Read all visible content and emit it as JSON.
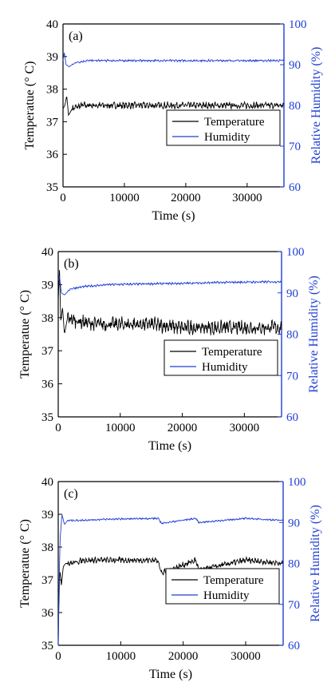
{
  "chart_data": [
    {
      "type": "line",
      "panel_label": "(a)",
      "xlabel": "Time (s)",
      "ylabel_left": "Temperatue (° C)",
      "ylabel_right": "Relative Humidity (%)",
      "xlim": [
        0,
        36000
      ],
      "ylim_left": [
        35,
        40
      ],
      "ylim_right": [
        60,
        100
      ],
      "x_ticks": [
        0,
        10000,
        20000,
        30000
      ],
      "y_ticks_left": [
        35,
        36,
        37,
        38,
        39,
        40
      ],
      "y_ticks_right": [
        60,
        70,
        80,
        90,
        100
      ],
      "legend_position": "right-middle",
      "series": [
        {
          "name": "Temperature",
          "axis": "left",
          "color": "#000000",
          "x": [
            0,
            300,
            600,
            900,
            1500,
            3000,
            6000,
            10000,
            15000,
            20000,
            25000,
            30000,
            36000
          ],
          "y": [
            37.4,
            37.5,
            37.8,
            37.2,
            37.4,
            37.5,
            37.5,
            37.5,
            37.5,
            37.5,
            37.5,
            37.5,
            37.5
          ],
          "noise": 0.12
        },
        {
          "name": "Humidity",
          "axis": "right",
          "color": "#1f3fd4",
          "x": [
            0,
            200,
            500,
            1000,
            2000,
            4000,
            8000,
            15000,
            20000,
            25000,
            30000,
            36000
          ],
          "y": [
            91,
            93,
            90,
            89.5,
            90.5,
            91,
            91,
            91,
            91,
            91,
            91,
            91
          ],
          "noise": 0.3
        }
      ]
    },
    {
      "type": "line",
      "panel_label": "(b)",
      "xlabel": "Time (s)",
      "ylabel_left": "Temperatue (° C)",
      "ylabel_right": "Relative Humidity (%)",
      "xlim": [
        0,
        36000
      ],
      "ylim_left": [
        35,
        40
      ],
      "ylim_right": [
        60,
        100
      ],
      "x_ticks": [
        0,
        10000,
        20000,
        30000
      ],
      "y_ticks_left": [
        35,
        36,
        37,
        38,
        39,
        40
      ],
      "y_ticks_right": [
        60,
        70,
        80,
        90,
        100
      ],
      "legend_position": "right-middle",
      "series": [
        {
          "name": "Temperature",
          "axis": "left",
          "color": "#000000",
          "x": [
            0,
            200,
            400,
            700,
            1000,
            1500,
            3000,
            6000,
            10000,
            15000,
            20000,
            25000,
            30000,
            36000
          ],
          "y": [
            38.5,
            39.5,
            37.9,
            38.3,
            37.5,
            38.0,
            37.9,
            37.8,
            37.8,
            37.8,
            37.7,
            37.7,
            37.7,
            37.7
          ],
          "noise": 0.25
        },
        {
          "name": "Humidity",
          "axis": "right",
          "color": "#1f3fd4",
          "x": [
            0,
            200,
            500,
            1000,
            2000,
            4000,
            8000,
            15000,
            20000,
            25000,
            30000,
            36000
          ],
          "y": [
            93,
            94,
            90,
            89.5,
            91,
            91.5,
            92,
            92.2,
            92.3,
            92.5,
            92.6,
            92.7
          ],
          "noise": 0.3
        }
      ]
    },
    {
      "type": "line",
      "panel_label": "(c)",
      "xlabel": "Time (s)",
      "ylabel_left": "Temperatue (° C)",
      "ylabel_right": "Relative Humidity (%)",
      "xlim": [
        0,
        36000
      ],
      "ylim_left": [
        35,
        40
      ],
      "ylim_right": [
        60,
        100
      ],
      "x_ticks": [
        0,
        10000,
        20000,
        30000
      ],
      "y_ticks_left": [
        35,
        36,
        37,
        38,
        39,
        40
      ],
      "y_ticks_right": [
        60,
        70,
        80,
        90,
        100
      ],
      "legend_position": "right-middle",
      "series": [
        {
          "name": "Temperature",
          "axis": "left",
          "color": "#000000",
          "x": [
            0,
            100,
            200,
            300,
            500,
            800,
            1200,
            2000,
            4000,
            8000,
            16000,
            16500,
            22000,
            22500,
            30000,
            36000
          ],
          "y": [
            35.0,
            36.2,
            37.0,
            37.3,
            36.8,
            37.4,
            37.5,
            37.5,
            37.6,
            37.6,
            37.6,
            37.2,
            37.6,
            37.3,
            37.6,
            37.5
          ],
          "noise": 0.1
        },
        {
          "name": "Humidity",
          "axis": "right",
          "color": "#1f3fd4",
          "x": [
            0,
            100,
            300,
            600,
            1000,
            1500,
            3000,
            8000,
            16000,
            16500,
            22000,
            22500,
            30000,
            36000
          ],
          "y": [
            60,
            72,
            86,
            92,
            89.5,
            90.5,
            90.5,
            90.8,
            91,
            89.8,
            91,
            90,
            91,
            90.5
          ],
          "noise": 0.25
        }
      ]
    }
  ]
}
